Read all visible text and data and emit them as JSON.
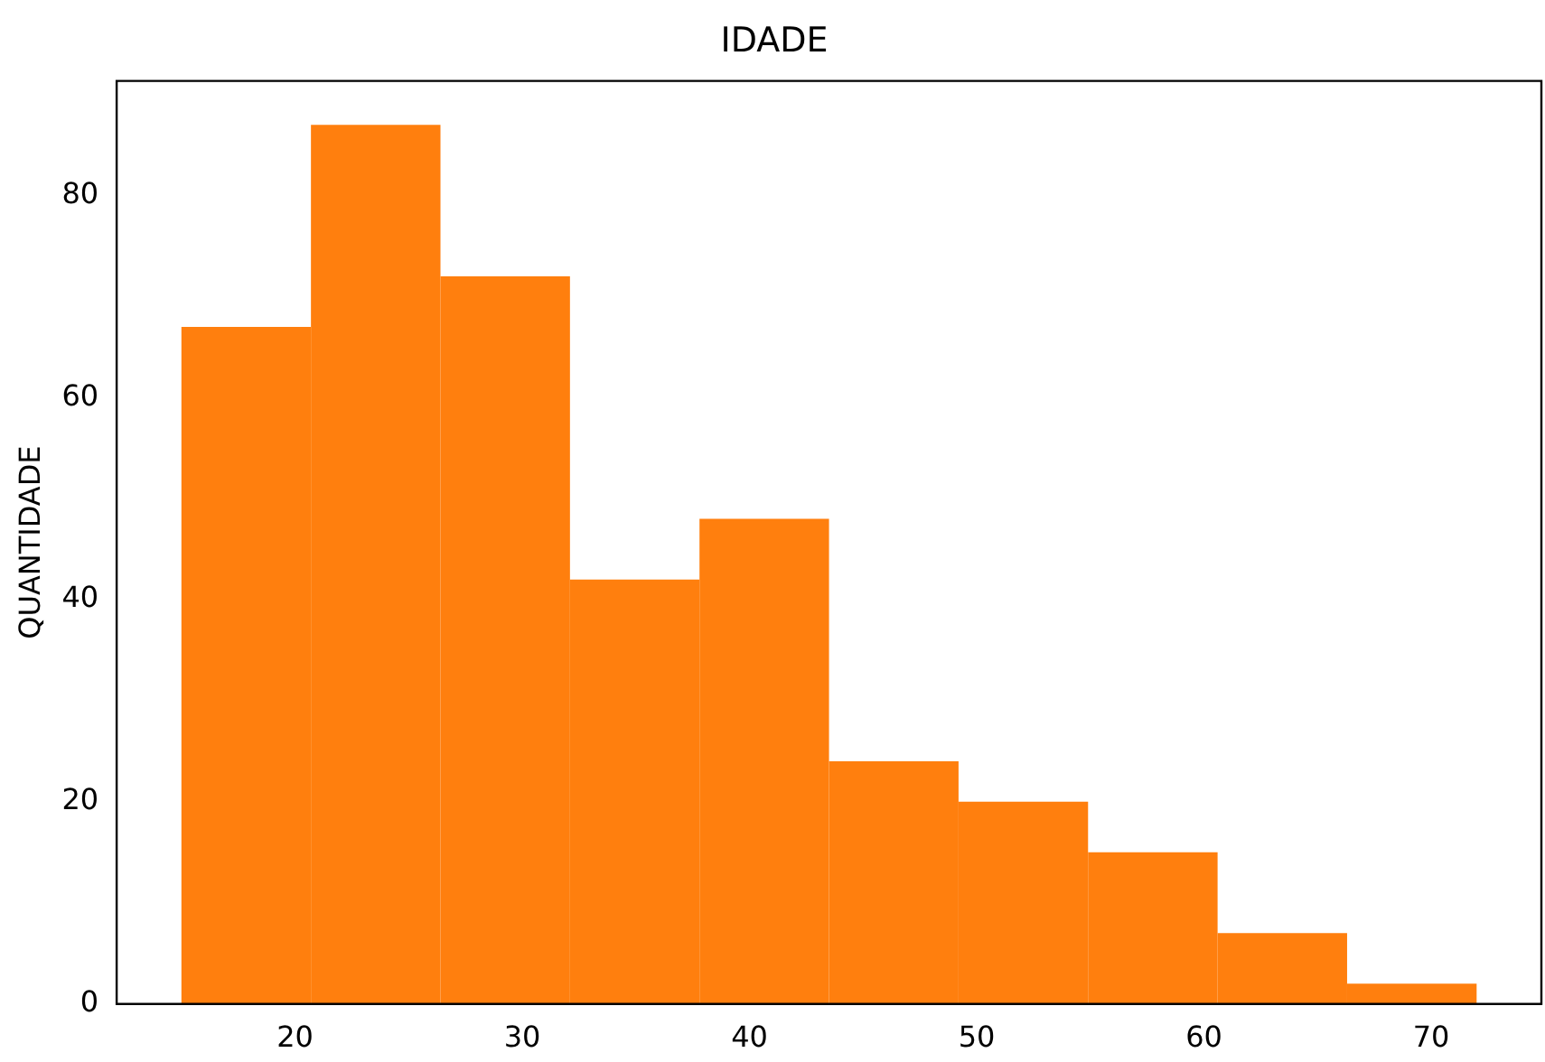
{
  "chart_data": {
    "type": "histogram",
    "title": "IDADE",
    "ylabel": "QUANTIDADE",
    "bins": [
      15,
      20.7,
      26.4,
      32.1,
      37.8,
      43.5,
      49.2,
      54.9,
      60.6,
      66.3,
      72
    ],
    "values": [
      67,
      87,
      72,
      42,
      48,
      24,
      20,
      15,
      7,
      2
    ],
    "color": "#ff7f0e",
    "xlim": [
      12.15,
      74.85
    ],
    "xticks": [
      20,
      30,
      40,
      50,
      60,
      70
    ],
    "ylim": [
      0,
      91.35
    ],
    "yticks": [
      0,
      20,
      40,
      60,
      80
    ],
    "grid": false,
    "legend": false
  }
}
